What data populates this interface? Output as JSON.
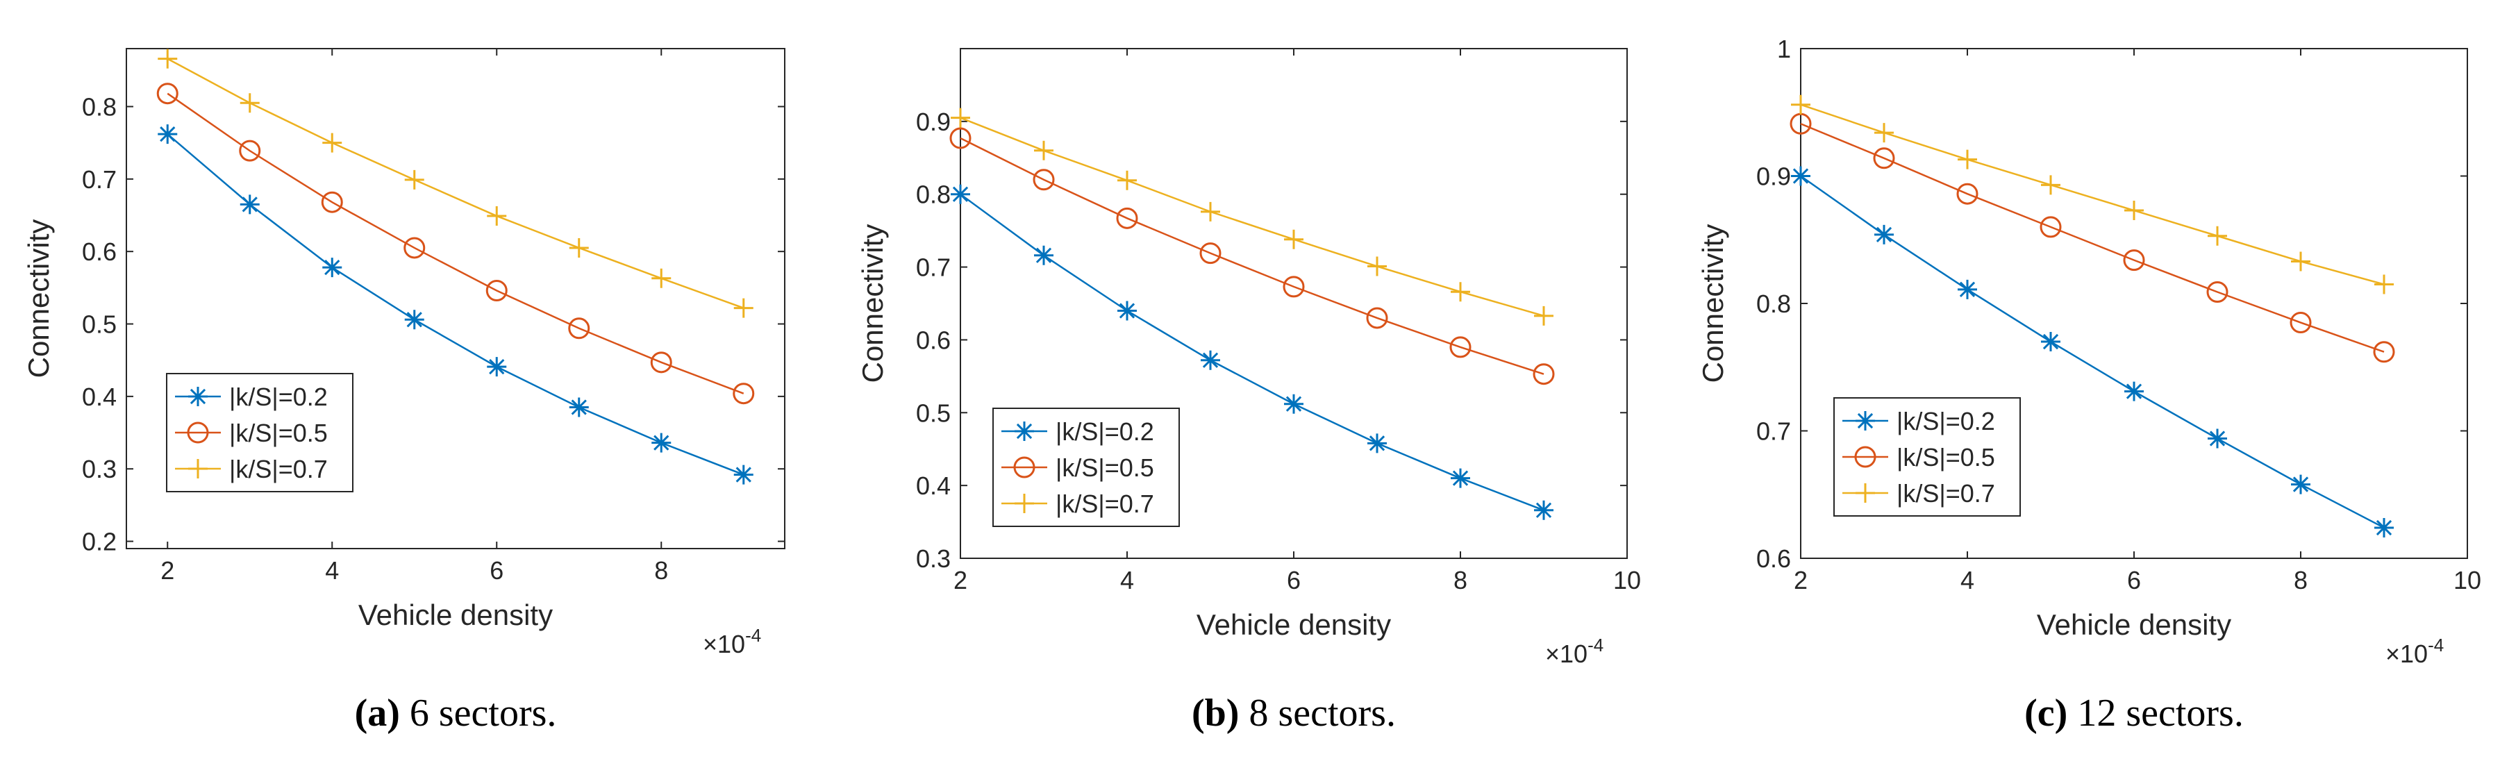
{
  "colors": {
    "series": [
      "#0072bd",
      "#d95319",
      "#edb120"
    ],
    "axis": "#262626"
  },
  "chart_data": [
    {
      "type": "line",
      "caption_letter": "(a)",
      "caption_text": " 6 sectors.",
      "xlabel": "Vehicle density",
      "ylabel": "Connectivity",
      "x_multiplier": "×10",
      "x_multiplier_exp": "-4",
      "xlim": [
        1.5,
        9.5
      ],
      "ylim": [
        0.19,
        0.88
      ],
      "xticks": [
        2,
        4,
        6,
        8
      ],
      "xtick_labels": [
        "2",
        "4",
        "6",
        "8"
      ],
      "yticks": [
        0.2,
        0.3,
        0.4,
        0.5,
        0.6,
        0.7,
        0.8
      ],
      "ytick_labels": [
        "0.2",
        "0.3",
        "0.4",
        "0.5",
        "0.6",
        "0.7",
        "0.8"
      ],
      "legend_position": "lower-left",
      "x": [
        2,
        3,
        4,
        5,
        6,
        7,
        8,
        9
      ],
      "series": [
        {
          "name": "|k/S|=0.2",
          "marker": "asterisk",
          "values": [
            0.762,
            0.665,
            0.578,
            0.506,
            0.441,
            0.385,
            0.336,
            0.292
          ]
        },
        {
          "name": "|k/S|=0.5",
          "marker": "circle",
          "values": [
            0.818,
            0.739,
            0.668,
            0.605,
            0.546,
            0.494,
            0.447,
            0.404
          ]
        },
        {
          "name": "|k/S|=0.7",
          "marker": "plus",
          "values": [
            0.866,
            0.805,
            0.75,
            0.699,
            0.649,
            0.605,
            0.563,
            0.522
          ]
        }
      ]
    },
    {
      "type": "line",
      "caption_letter": "(b)",
      "caption_text": " 8 sectors.",
      "xlabel": "Vehicle density",
      "ylabel": "Connectivity",
      "x_multiplier": "×10",
      "x_multiplier_exp": "-4",
      "xlim": [
        2,
        10
      ],
      "ylim": [
        0.3,
        1.0
      ],
      "xticks": [
        2,
        4,
        6,
        8,
        10
      ],
      "xtick_labels": [
        "2",
        "4",
        "6",
        "8",
        "10"
      ],
      "yticks": [
        0.3,
        0.4,
        0.5,
        0.6,
        0.7,
        0.8,
        0.9
      ],
      "ytick_labels": [
        "0.3",
        "0.4",
        "0.5",
        "0.6",
        "0.7",
        "0.8",
        "0.9"
      ],
      "legend_position": "lower-left",
      "x": [
        2,
        3,
        4,
        5,
        6,
        7,
        8,
        9
      ],
      "series": [
        {
          "name": "|k/S|=0.2",
          "marker": "asterisk",
          "values": [
            0.8,
            0.716,
            0.64,
            0.572,
            0.512,
            0.458,
            0.41,
            0.366
          ]
        },
        {
          "name": "|k/S|=0.5",
          "marker": "circle",
          "values": [
            0.877,
            0.82,
            0.767,
            0.719,
            0.673,
            0.63,
            0.59,
            0.553
          ]
        },
        {
          "name": "|k/S|=0.7",
          "marker": "plus",
          "values": [
            0.905,
            0.86,
            0.819,
            0.776,
            0.738,
            0.701,
            0.666,
            0.633
          ]
        }
      ]
    },
    {
      "type": "line",
      "caption_letter": "(c)",
      "caption_text": " 12 sectors.",
      "xlabel": "Vehicle density",
      "ylabel": "Connectivity",
      "x_multiplier": "×10",
      "x_multiplier_exp": "-4",
      "xlim": [
        2,
        10
      ],
      "ylim": [
        0.6,
        1.0
      ],
      "xticks": [
        2,
        4,
        6,
        8,
        10
      ],
      "xtick_labels": [
        "2",
        "4",
        "6",
        "8",
        "10"
      ],
      "yticks": [
        0.6,
        0.7,
        0.8,
        0.9,
        1.0
      ],
      "ytick_labels": [
        "0.6",
        "0.7",
        "0.8",
        "0.9",
        "1"
      ],
      "legend_position": "lower-left",
      "x": [
        2,
        3,
        4,
        5,
        6,
        7,
        8,
        9
      ],
      "series": [
        {
          "name": "|k/S|=0.2",
          "marker": "asterisk",
          "values": [
            0.9,
            0.854,
            0.811,
            0.77,
            0.731,
            0.694,
            0.658,
            0.624
          ]
        },
        {
          "name": "|k/S|=0.5",
          "marker": "circle",
          "values": [
            0.941,
            0.914,
            0.886,
            0.86,
            0.834,
            0.809,
            0.785,
            0.762
          ]
        },
        {
          "name": "|k/S|=0.7",
          "marker": "plus",
          "values": [
            0.956,
            0.934,
            0.913,
            0.893,
            0.873,
            0.853,
            0.833,
            0.815
          ]
        }
      ]
    }
  ]
}
